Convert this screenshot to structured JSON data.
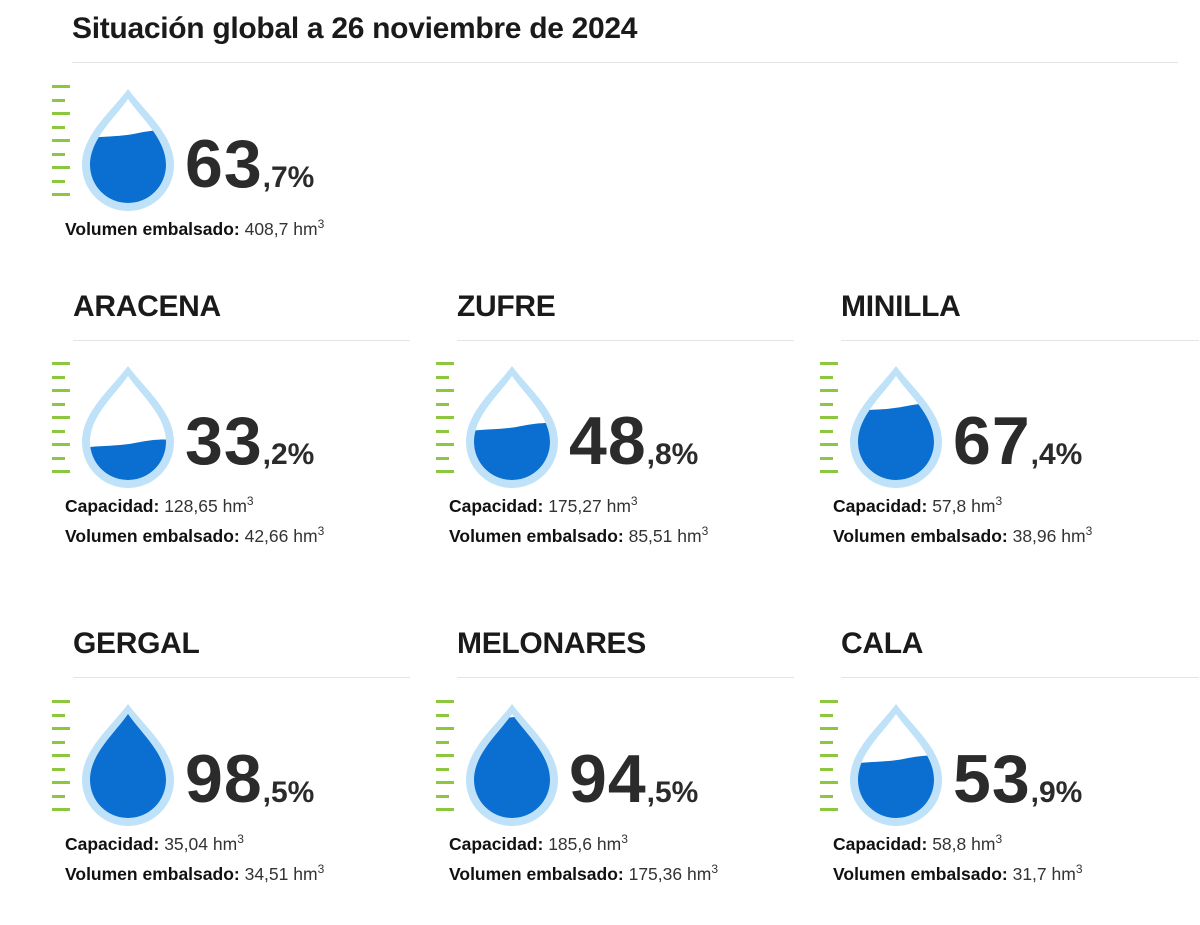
{
  "title": "Situación global a 26 noviembre de 2024",
  "colors": {
    "water": "#0a6fd0",
    "drop_outline": "#bfe2f8",
    "ticks": "#8dc63f"
  },
  "labels": {
    "capacity": "Capacidad:",
    "volume": "Volumen embalsado:",
    "unit": "hm",
    "unit_exp": "3"
  },
  "global": {
    "int": "63",
    "dec": ",7%",
    "percent": 63.7,
    "volume": "408,7"
  },
  "reservoirs": [
    {
      "name": "ARACENA",
      "int": "33",
      "dec": ",2%",
      "percent": 33.2,
      "capacity": "128,65",
      "volume": "42,66"
    },
    {
      "name": "ZUFRE",
      "int": "48",
      "dec": ",8%",
      "percent": 48.8,
      "capacity": "175,27",
      "volume": "85,51"
    },
    {
      "name": "MINILLA",
      "int": "67",
      "dec": ",4%",
      "percent": 67.4,
      "capacity": "57,8",
      "volume": "38,96"
    },
    {
      "name": "GERGAL",
      "int": "98",
      "dec": ",5%",
      "percent": 98.5,
      "capacity": "35,04",
      "volume": "34,51"
    },
    {
      "name": "MELONARES",
      "int": "94",
      "dec": ",5%",
      "percent": 94.5,
      "capacity": "185,6",
      "volume": "175,36"
    },
    {
      "name": "CALA",
      "int": "53",
      "dec": ",9%",
      "percent": 53.9,
      "capacity": "58,8",
      "volume": "31,7"
    }
  ]
}
